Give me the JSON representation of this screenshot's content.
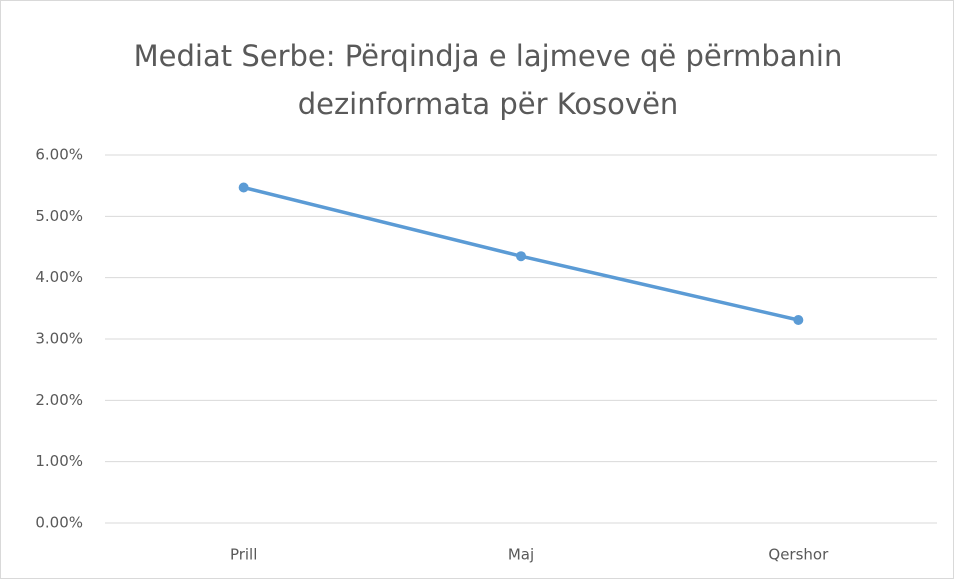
{
  "chart_data": {
    "type": "line",
    "title": "Mediat Serbe: Përqindja e lajmeve që përmbanin dezinformata për Kosovën",
    "categories": [
      "Prill",
      "Maj",
      "Qershor"
    ],
    "series": [
      {
        "color": "#5b9bd5",
        "values": [
          5.47,
          4.35,
          3.31
        ]
      }
    ],
    "ylim": [
      0,
      6
    ],
    "yticks": [
      {
        "value": 0,
        "label": "0.00%"
      },
      {
        "value": 1,
        "label": "1.00%"
      },
      {
        "value": 2,
        "label": "2.00%"
      },
      {
        "value": 3,
        "label": "3.00%"
      },
      {
        "value": 4,
        "label": "4.00%"
      },
      {
        "value": 5,
        "label": "5.00%"
      },
      {
        "value": 6,
        "label": "6.00%"
      }
    ],
    "grid": true
  }
}
